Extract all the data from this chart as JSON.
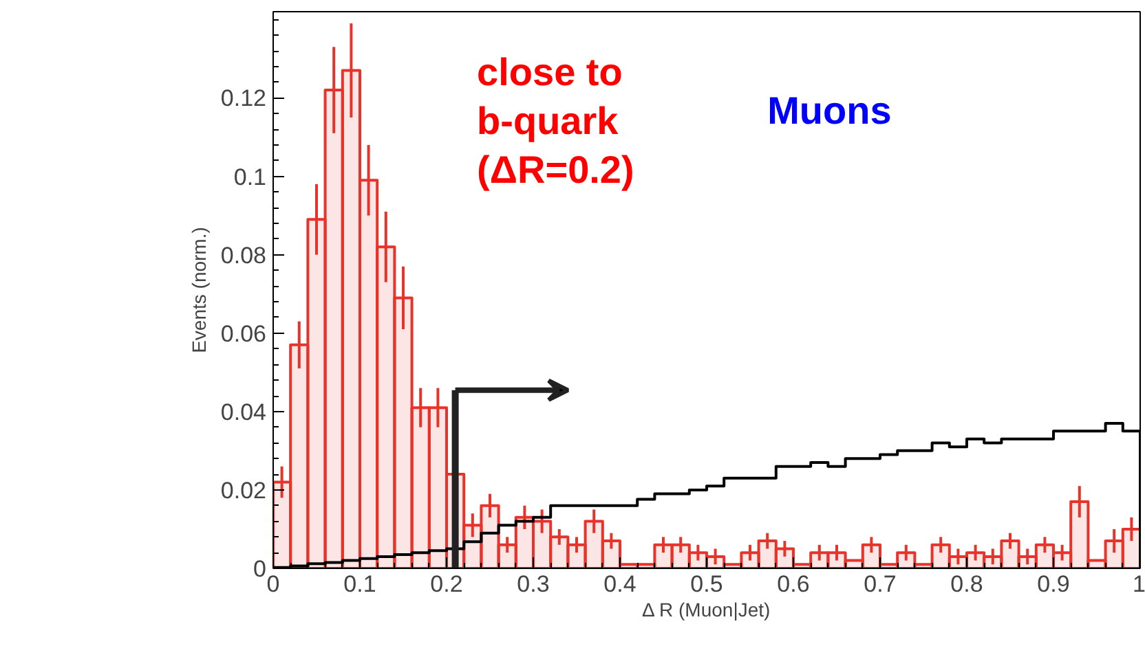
{
  "chart_data": {
    "type": "histogram",
    "xlabel": "Δ R (Muon|Jet)",
    "ylabel": "Events (norm.)",
    "bins": [
      0,
      0.02,
      0.04,
      0.06,
      0.08,
      0.1,
      0.12,
      0.14,
      0.16,
      0.18,
      0.2,
      0.22,
      0.24,
      0.26,
      0.28,
      0.3,
      0.32,
      0.34,
      0.36,
      0.38,
      0.4,
      0.42,
      0.44,
      0.46,
      0.48,
      0.5,
      0.52,
      0.54,
      0.56,
      0.58,
      0.6,
      0.62,
      0.64,
      0.66,
      0.68,
      0.7,
      0.72,
      0.74,
      0.76,
      0.78,
      0.8,
      0.82,
      0.84,
      0.86,
      0.88,
      0.9,
      0.92,
      0.94,
      0.96,
      0.98,
      1
    ],
    "series": [
      {
        "color": "#e8332a",
        "values": [
          0.022,
          0.057,
          0.089,
          0.122,
          0.127,
          0.099,
          0.082,
          0.069,
          0.041,
          0.041,
          0.024,
          0.011,
          0.016,
          0.006,
          0.013,
          0.012,
          0.008,
          0.006,
          0.012,
          0.007,
          0.001,
          0.001,
          0.006,
          0.006,
          0.004,
          0.003,
          0.001,
          0.004,
          0.007,
          0.005,
          0.001,
          0.004,
          0.004,
          0.002,
          0.006,
          0.001,
          0.004,
          0.001,
          0.006,
          0.003,
          0.004,
          0.003,
          0.007,
          0.003,
          0.006,
          0.004,
          0.017,
          0.002,
          0.007,
          0.01
        ],
        "errors": [
          0.004,
          0.006,
          0.009,
          0.011,
          0.012,
          0.009,
          0.009,
          0.008,
          0.005,
          0.005,
          null,
          0.003,
          0.003,
          0.002,
          0.003,
          0.003,
          0.002,
          0.002,
          0.003,
          0.002,
          null,
          null,
          0.002,
          0.002,
          0.002,
          0.002,
          null,
          0.002,
          0.002,
          0.002,
          null,
          0.002,
          0.002,
          null,
          0.002,
          null,
          0.002,
          null,
          0.002,
          0.002,
          0.002,
          0.002,
          0.002,
          0.002,
          0.002,
          0.002,
          0.004,
          null,
          0.003,
          0.003
        ]
      },
      {
        "color": "#000000",
        "values": [
          0.0002,
          0.0006,
          0.0012,
          0.0015,
          0.002,
          0.0025,
          0.003,
          0.0035,
          0.004,
          0.0045,
          0.005,
          0.0068,
          0.009,
          0.011,
          0.012,
          0.013,
          0.016,
          0.016,
          0.016,
          0.016,
          0.016,
          0.0176,
          0.019,
          0.019,
          0.02,
          0.021,
          0.023,
          0.023,
          0.023,
          0.026,
          0.026,
          0.027,
          0.026,
          0.028,
          0.028,
          0.029,
          0.03,
          0.03,
          0.032,
          0.031,
          0.033,
          0.032,
          0.033,
          0.033,
          0.033,
          0.035,
          0.035,
          0.035,
          0.037,
          0.035
        ]
      }
    ],
    "xlim": [
      0,
      1
    ],
    "ylim": [
      0,
      0.142
    ],
    "xticks": [
      0,
      0.1,
      0.2,
      0.3,
      0.4,
      0.5,
      0.6,
      0.7,
      0.8,
      0.9,
      1
    ],
    "yticks": [
      0,
      0.02,
      0.04,
      0.06,
      0.08,
      0.1,
      0.12
    ],
    "ref_lines": [
      {
        "axis": "x",
        "value": 0.21,
        "color": "#222222"
      }
    ],
    "annotations": [
      "close to\nb-quark\n(ΔR=0.2)",
      "Muons"
    ],
    "grid": false
  }
}
